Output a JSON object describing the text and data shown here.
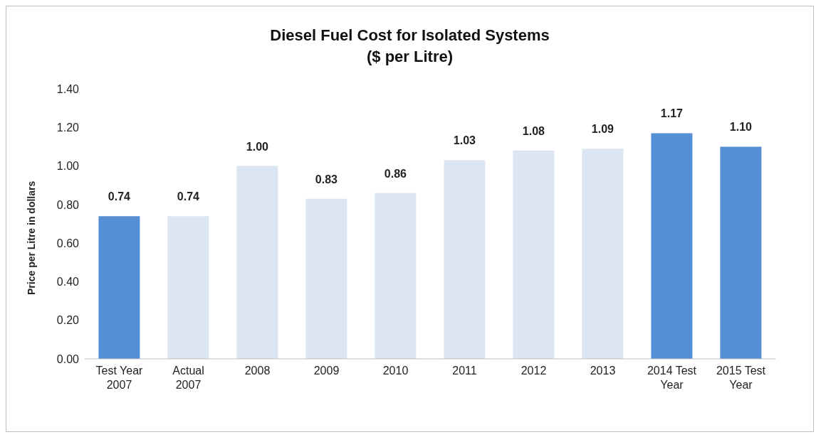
{
  "chart_data": {
    "type": "bar",
    "title": "Diesel Fuel Cost for Isolated Systems",
    "subtitle": "($ per Litre)",
    "ylabel": "Price per Litre in dollars",
    "categories": [
      "Test Year 2007",
      "Actual 2007",
      "2008",
      "2009",
      "2010",
      "2011",
      "2012",
      "2013",
      "2014 Test Year",
      "2015 Test Year"
    ],
    "values": [
      0.74,
      0.74,
      1.0,
      0.83,
      0.86,
      1.03,
      1.08,
      1.09,
      1.17,
      1.1
    ],
    "colors": [
      "#558ed5",
      "#dce6f2",
      "#dce6f2",
      "#dce6f2",
      "#dce6f2",
      "#dce6f2",
      "#dce6f2",
      "#dce6f2",
      "#558ed5",
      "#558ed5"
    ],
    "value_labels": [
      "0.74",
      "0.74",
      "1.00",
      "0.83",
      "0.86",
      "1.03",
      "1.08",
      "1.09",
      "1.17",
      "1.10"
    ],
    "ylim": [
      0,
      1.4
    ],
    "yticks": [
      {
        "value": 0,
        "label": "0.00"
      },
      {
        "value": 0.2,
        "label": "0.20"
      },
      {
        "value": 0.4,
        "label": "0.40"
      },
      {
        "value": 0.6,
        "label": "0.60"
      },
      {
        "value": 0.8,
        "label": "0.80"
      },
      {
        "value": 1,
        "label": "1.00"
      },
      {
        "value": 1.2,
        "label": "1.20"
      },
      {
        "value": 1.4,
        "label": "1.40"
      }
    ],
    "grid": false
  }
}
